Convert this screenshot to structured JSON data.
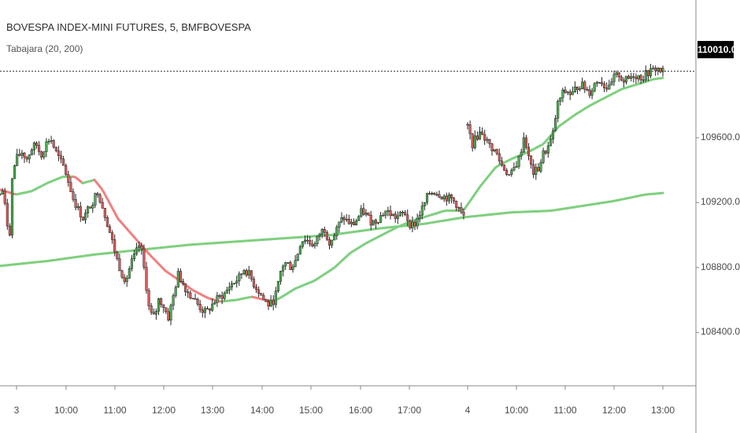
{
  "header": {
    "title": "BOVESPA INDEX-MINI FUTURES, 5, BMFBOVESPA",
    "indicator": "Tabajara (20, 200)"
  },
  "chart_data": {
    "type": "candlestick",
    "last_price_label": "110010.0",
    "last_price": 110010,
    "y_ticks": [
      109600,
      109200,
      108800,
      108400
    ],
    "y_tick_labels": [
      "109600.0",
      "109200.0",
      "108800.0",
      "108400.0"
    ],
    "x_ticks": [
      "3",
      "10:00",
      "11:00",
      "12:00",
      "13:00",
      "14:00",
      "15:00",
      "16:00",
      "17:00",
      "4",
      "10:00",
      "11:00",
      "12:00",
      "13:00"
    ],
    "ylim": [
      108120,
      110400
    ],
    "colors": {
      "up_candle": "#4caf50",
      "down_candle": "#e05a5a",
      "ma_up": "#7fd07f",
      "ma_down": "#f08080",
      "background": "#ffffff"
    },
    "sessions": [
      {
        "name": "day 3",
        "close_path": [
          [
            0,
            109250
          ],
          [
            4,
            109280
          ],
          [
            7,
            109140
          ],
          [
            12,
            108980
          ],
          [
            16,
            109390
          ],
          [
            22,
            109480
          ],
          [
            28,
            109510
          ],
          [
            34,
            109470
          ],
          [
            40,
            109530
          ],
          [
            46,
            109560
          ],
          [
            52,
            109490
          ],
          [
            58,
            109560
          ],
          [
            64,
            109600
          ],
          [
            70,
            109520
          ],
          [
            76,
            109460
          ],
          [
            82,
            109410
          ],
          [
            88,
            109310
          ],
          [
            94,
            109210
          ],
          [
            100,
            109150
          ],
          [
            106,
            109100
          ],
          [
            112,
            109160
          ],
          [
            118,
            109210
          ],
          [
            124,
            109270
          ],
          [
            130,
            109180
          ],
          [
            136,
            109080
          ],
          [
            142,
            108970
          ],
          [
            148,
            108860
          ],
          [
            154,
            108770
          ],
          [
            160,
            108720
          ],
          [
            166,
            108820
          ],
          [
            172,
            108880
          ],
          [
            178,
            108950
          ],
          [
            184,
            108760
          ],
          [
            190,
            108520
          ],
          [
            196,
            108490
          ],
          [
            202,
            108610
          ],
          [
            208,
            108560
          ],
          [
            214,
            108490
          ],
          [
            220,
            108620
          ],
          [
            226,
            108760
          ],
          [
            232,
            108710
          ],
          [
            238,
            108650
          ],
          [
            244,
            108620
          ],
          [
            250,
            108580
          ],
          [
            256,
            108540
          ],
          [
            262,
            108520
          ],
          [
            268,
            108560
          ],
          [
            274,
            108600
          ],
          [
            280,
            108620
          ],
          [
            286,
            108640
          ],
          [
            292,
            108690
          ],
          [
            298,
            108710
          ],
          [
            304,
            108740
          ],
          [
            310,
            108790
          ],
          [
            316,
            108760
          ],
          [
            322,
            108700
          ],
          [
            328,
            108660
          ],
          [
            334,
            108610
          ],
          [
            340,
            108570
          ],
          [
            346,
            108580
          ],
          [
            352,
            108660
          ],
          [
            358,
            108810
          ],
          [
            364,
            108830
          ],
          [
            370,
            108800
          ],
          [
            376,
            108850
          ],
          [
            382,
            108960
          ],
          [
            388,
            108980
          ],
          [
            394,
            108950
          ],
          [
            400,
            108940
          ],
          [
            406,
            109010
          ],
          [
            412,
            109040
          ],
          [
            418,
            108960
          ],
          [
            424,
            108990
          ],
          [
            430,
            109060
          ],
          [
            436,
            109110
          ],
          [
            442,
            109080
          ],
          [
            448,
            109060
          ],
          [
            454,
            109100
          ],
          [
            460,
            109150
          ],
          [
            466,
            109120
          ],
          [
            472,
            109080
          ],
          [
            478,
            109090
          ],
          [
            484,
            109120
          ],
          [
            490,
            109150
          ],
          [
            496,
            109130
          ],
          [
            502,
            109110
          ],
          [
            508,
            109120
          ],
          [
            514,
            109140
          ],
          [
            520,
            109070
          ],
          [
            526,
            109060
          ],
          [
            532,
            109120
          ],
          [
            538,
            109180
          ],
          [
            544,
            109250
          ],
          [
            550,
            109270
          ],
          [
            556,
            109260
          ],
          [
            562,
            109240
          ],
          [
            568,
            109230
          ],
          [
            574,
            109220
          ],
          [
            580,
            109190
          ],
          [
            586,
            109130
          ],
          [
            590,
            109110
          ]
        ],
        "ma20": [
          [
            0,
            109280
          ],
          [
            20,
            109250
          ],
          [
            40,
            109270
          ],
          [
            60,
            109320
          ],
          [
            80,
            109360
          ],
          [
            95,
            109360
          ],
          [
            105,
            109320
          ],
          [
            120,
            109340
          ],
          [
            130,
            109280
          ],
          [
            150,
            109100
          ],
          [
            170,
            108990
          ],
          [
            190,
            108880
          ],
          [
            210,
            108780
          ],
          [
            225,
            108730
          ],
          [
            245,
            108660
          ],
          [
            265,
            108610
          ],
          [
            280,
            108590
          ],
          [
            300,
            108600
          ],
          [
            320,
            108620
          ],
          [
            345,
            108590
          ],
          [
            355,
            108610
          ],
          [
            375,
            108670
          ],
          [
            400,
            108720
          ],
          [
            425,
            108800
          ],
          [
            445,
            108890
          ],
          [
            465,
            108950
          ],
          [
            485,
            109000
          ],
          [
            505,
            109050
          ],
          [
            525,
            109090
          ],
          [
            545,
            109120
          ],
          [
            565,
            109150
          ],
          [
            580,
            109150
          ],
          [
            590,
            109160
          ]
        ],
        "ma200": [
          [
            0,
            108810
          ],
          [
            60,
            108840
          ],
          [
            120,
            108880
          ],
          [
            180,
            108910
          ],
          [
            240,
            108940
          ],
          [
            300,
            108960
          ],
          [
            360,
            108980
          ],
          [
            420,
            109000
          ],
          [
            480,
            109040
          ],
          [
            540,
            109070
          ],
          [
            590,
            109110
          ]
        ]
      },
      {
        "name": "day 4",
        "close_path": [
          [
            594,
            109670
          ],
          [
            600,
            109560
          ],
          [
            606,
            109610
          ],
          [
            612,
            109640
          ],
          [
            618,
            109580
          ],
          [
            624,
            109540
          ],
          [
            630,
            109510
          ],
          [
            636,
            109440
          ],
          [
            642,
            109400
          ],
          [
            648,
            109360
          ],
          [
            654,
            109420
          ],
          [
            660,
            109480
          ],
          [
            666,
            109620
          ],
          [
            672,
            109460
          ],
          [
            678,
            109380
          ],
          [
            684,
            109410
          ],
          [
            690,
            109500
          ],
          [
            696,
            109540
          ],
          [
            702,
            109610
          ],
          [
            708,
            109800
          ],
          [
            714,
            109870
          ],
          [
            720,
            109890
          ],
          [
            726,
            109860
          ],
          [
            732,
            109910
          ],
          [
            738,
            109930
          ],
          [
            744,
            109900
          ],
          [
            750,
            109880
          ],
          [
            756,
            109940
          ],
          [
            762,
            109960
          ],
          [
            768,
            109920
          ],
          [
            774,
            109900
          ],
          [
            780,
            109970
          ],
          [
            786,
            109990
          ],
          [
            792,
            109950
          ],
          [
            798,
            109960
          ],
          [
            804,
            109990
          ],
          [
            810,
            109980
          ],
          [
            816,
            109970
          ],
          [
            822,
            110000
          ],
          [
            828,
            110010
          ],
          [
            834,
            110030
          ],
          [
            840,
            110010
          ],
          [
            844,
            110010
          ]
        ],
        "ma20": [
          [
            590,
            109160
          ],
          [
            610,
            109300
          ],
          [
            630,
            109420
          ],
          [
            650,
            109470
          ],
          [
            670,
            109510
          ],
          [
            690,
            109560
          ],
          [
            710,
            109670
          ],
          [
            730,
            109740
          ],
          [
            750,
            109800
          ],
          [
            770,
            109850
          ],
          [
            790,
            109900
          ],
          [
            810,
            109930
          ],
          [
            830,
            109960
          ],
          [
            844,
            109970
          ]
        ],
        "ma200": [
          [
            590,
            109110
          ],
          [
            650,
            109140
          ],
          [
            700,
            109150
          ],
          [
            740,
            109180
          ],
          [
            780,
            109210
          ],
          [
            820,
            109250
          ],
          [
            844,
            109260
          ]
        ]
      }
    ]
  }
}
